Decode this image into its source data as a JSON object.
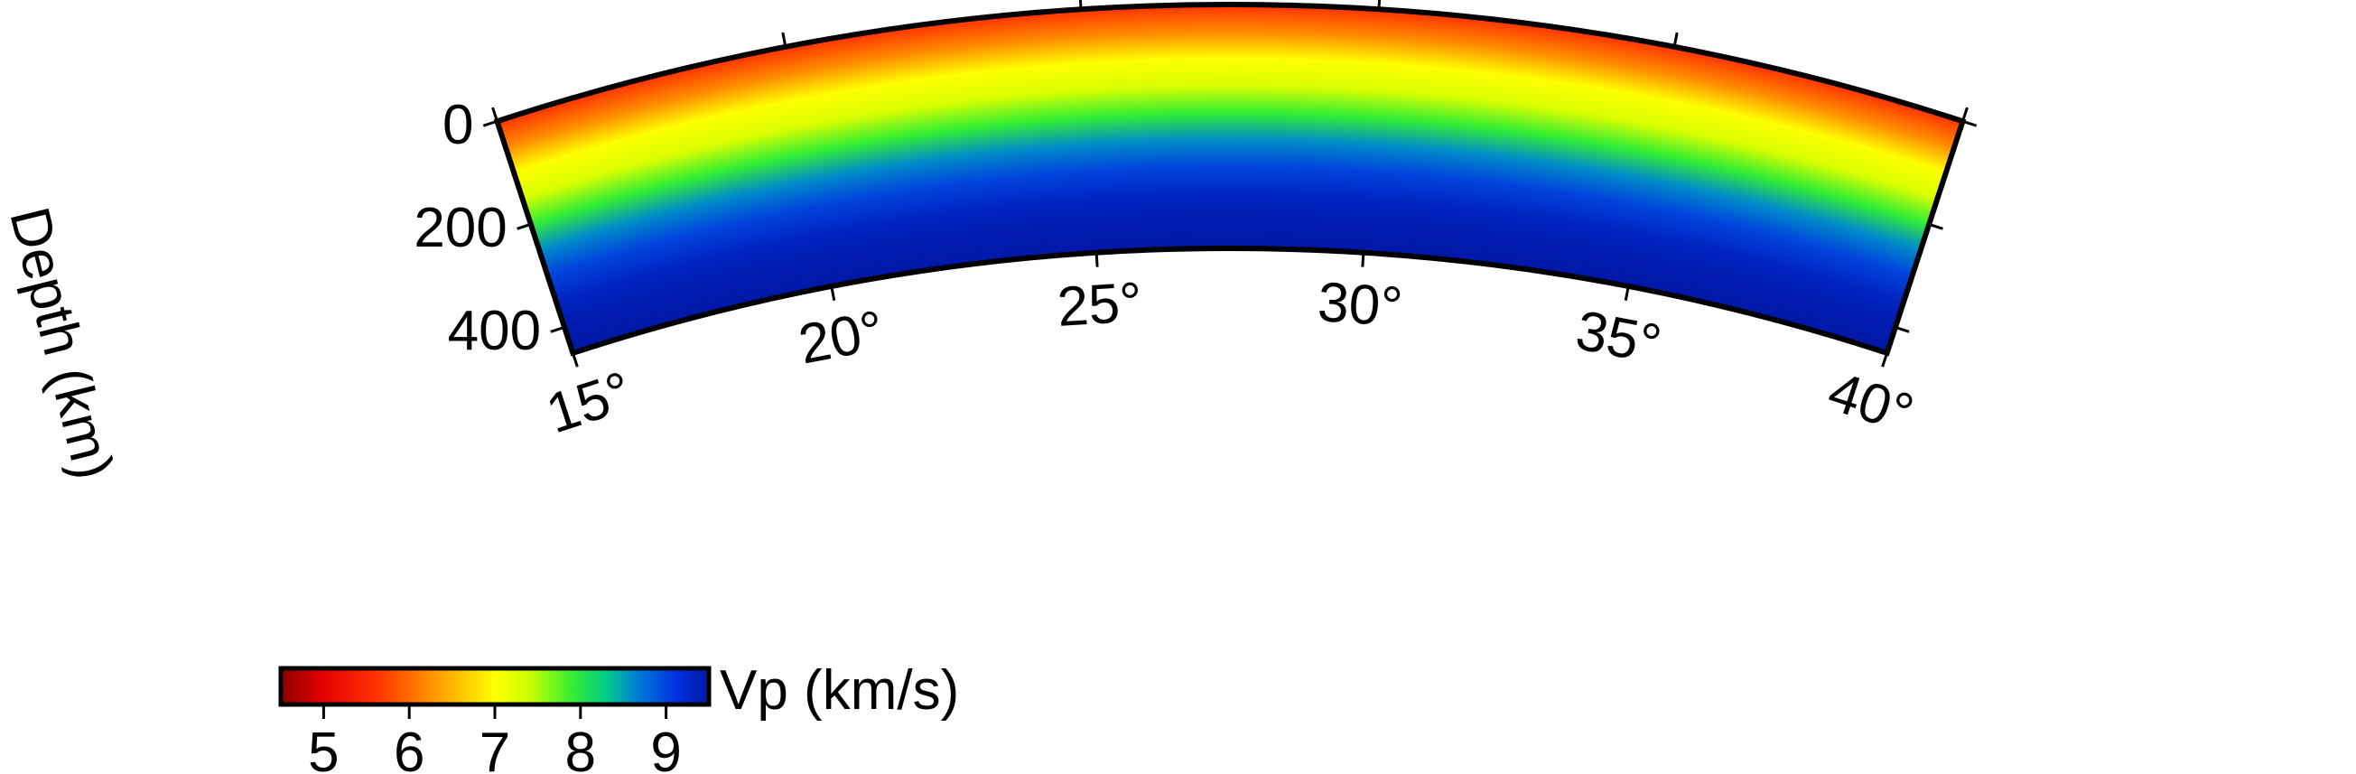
{
  "chart_data": {
    "type": "heatmap",
    "projection": "polar cross-section",
    "x": {
      "quantity": "angular distance",
      "unit": "°",
      "range": [
        15,
        40
      ],
      "ticks": [
        15,
        20,
        25,
        30,
        35,
        40
      ],
      "tick_labels": [
        "15°",
        "20°",
        "25°",
        "30°",
        "35°",
        "40°"
      ]
    },
    "y": {
      "label": "Depth (km)",
      "range": [
        0,
        450
      ],
      "ticks": [
        0,
        200,
        400
      ],
      "tick_labels": [
        "0",
        "200",
        "400"
      ]
    },
    "field": {
      "description": "Vp increases with depth, constant along angle",
      "depth_km": [
        0,
        50,
        100,
        150,
        200,
        250,
        300,
        350,
        400,
        450
      ],
      "vp_km_s": [
        5.6,
        6.2,
        7.0,
        7.3,
        7.9,
        8.6,
        9.0,
        9.3,
        9.45,
        9.5
      ]
    },
    "colorbar": {
      "label": "Vp (km/s)",
      "range": [
        4.5,
        9.5
      ],
      "ticks": [
        5,
        6,
        7,
        8,
        9
      ],
      "tick_labels": [
        "5",
        "6",
        "7",
        "8",
        "9"
      ],
      "colormap": [
        {
          "v": 4.5,
          "color": "#8b0000"
        },
        {
          "v": 5.0,
          "color": "#e60000"
        },
        {
          "v": 5.6,
          "color": "#ff3000"
        },
        {
          "v": 6.3,
          "color": "#ff9900"
        },
        {
          "v": 7.0,
          "color": "#ffff00"
        },
        {
          "v": 7.4,
          "color": "#ccff00"
        },
        {
          "v": 7.9,
          "color": "#33ee33"
        },
        {
          "v": 8.3,
          "color": "#00cc88"
        },
        {
          "v": 8.7,
          "color": "#0077dd"
        },
        {
          "v": 9.1,
          "color": "#0033dd"
        },
        {
          "v": 9.5,
          "color": "#0018a8"
        }
      ]
    },
    "grid": false,
    "legend": "colorbar bottom-left"
  }
}
